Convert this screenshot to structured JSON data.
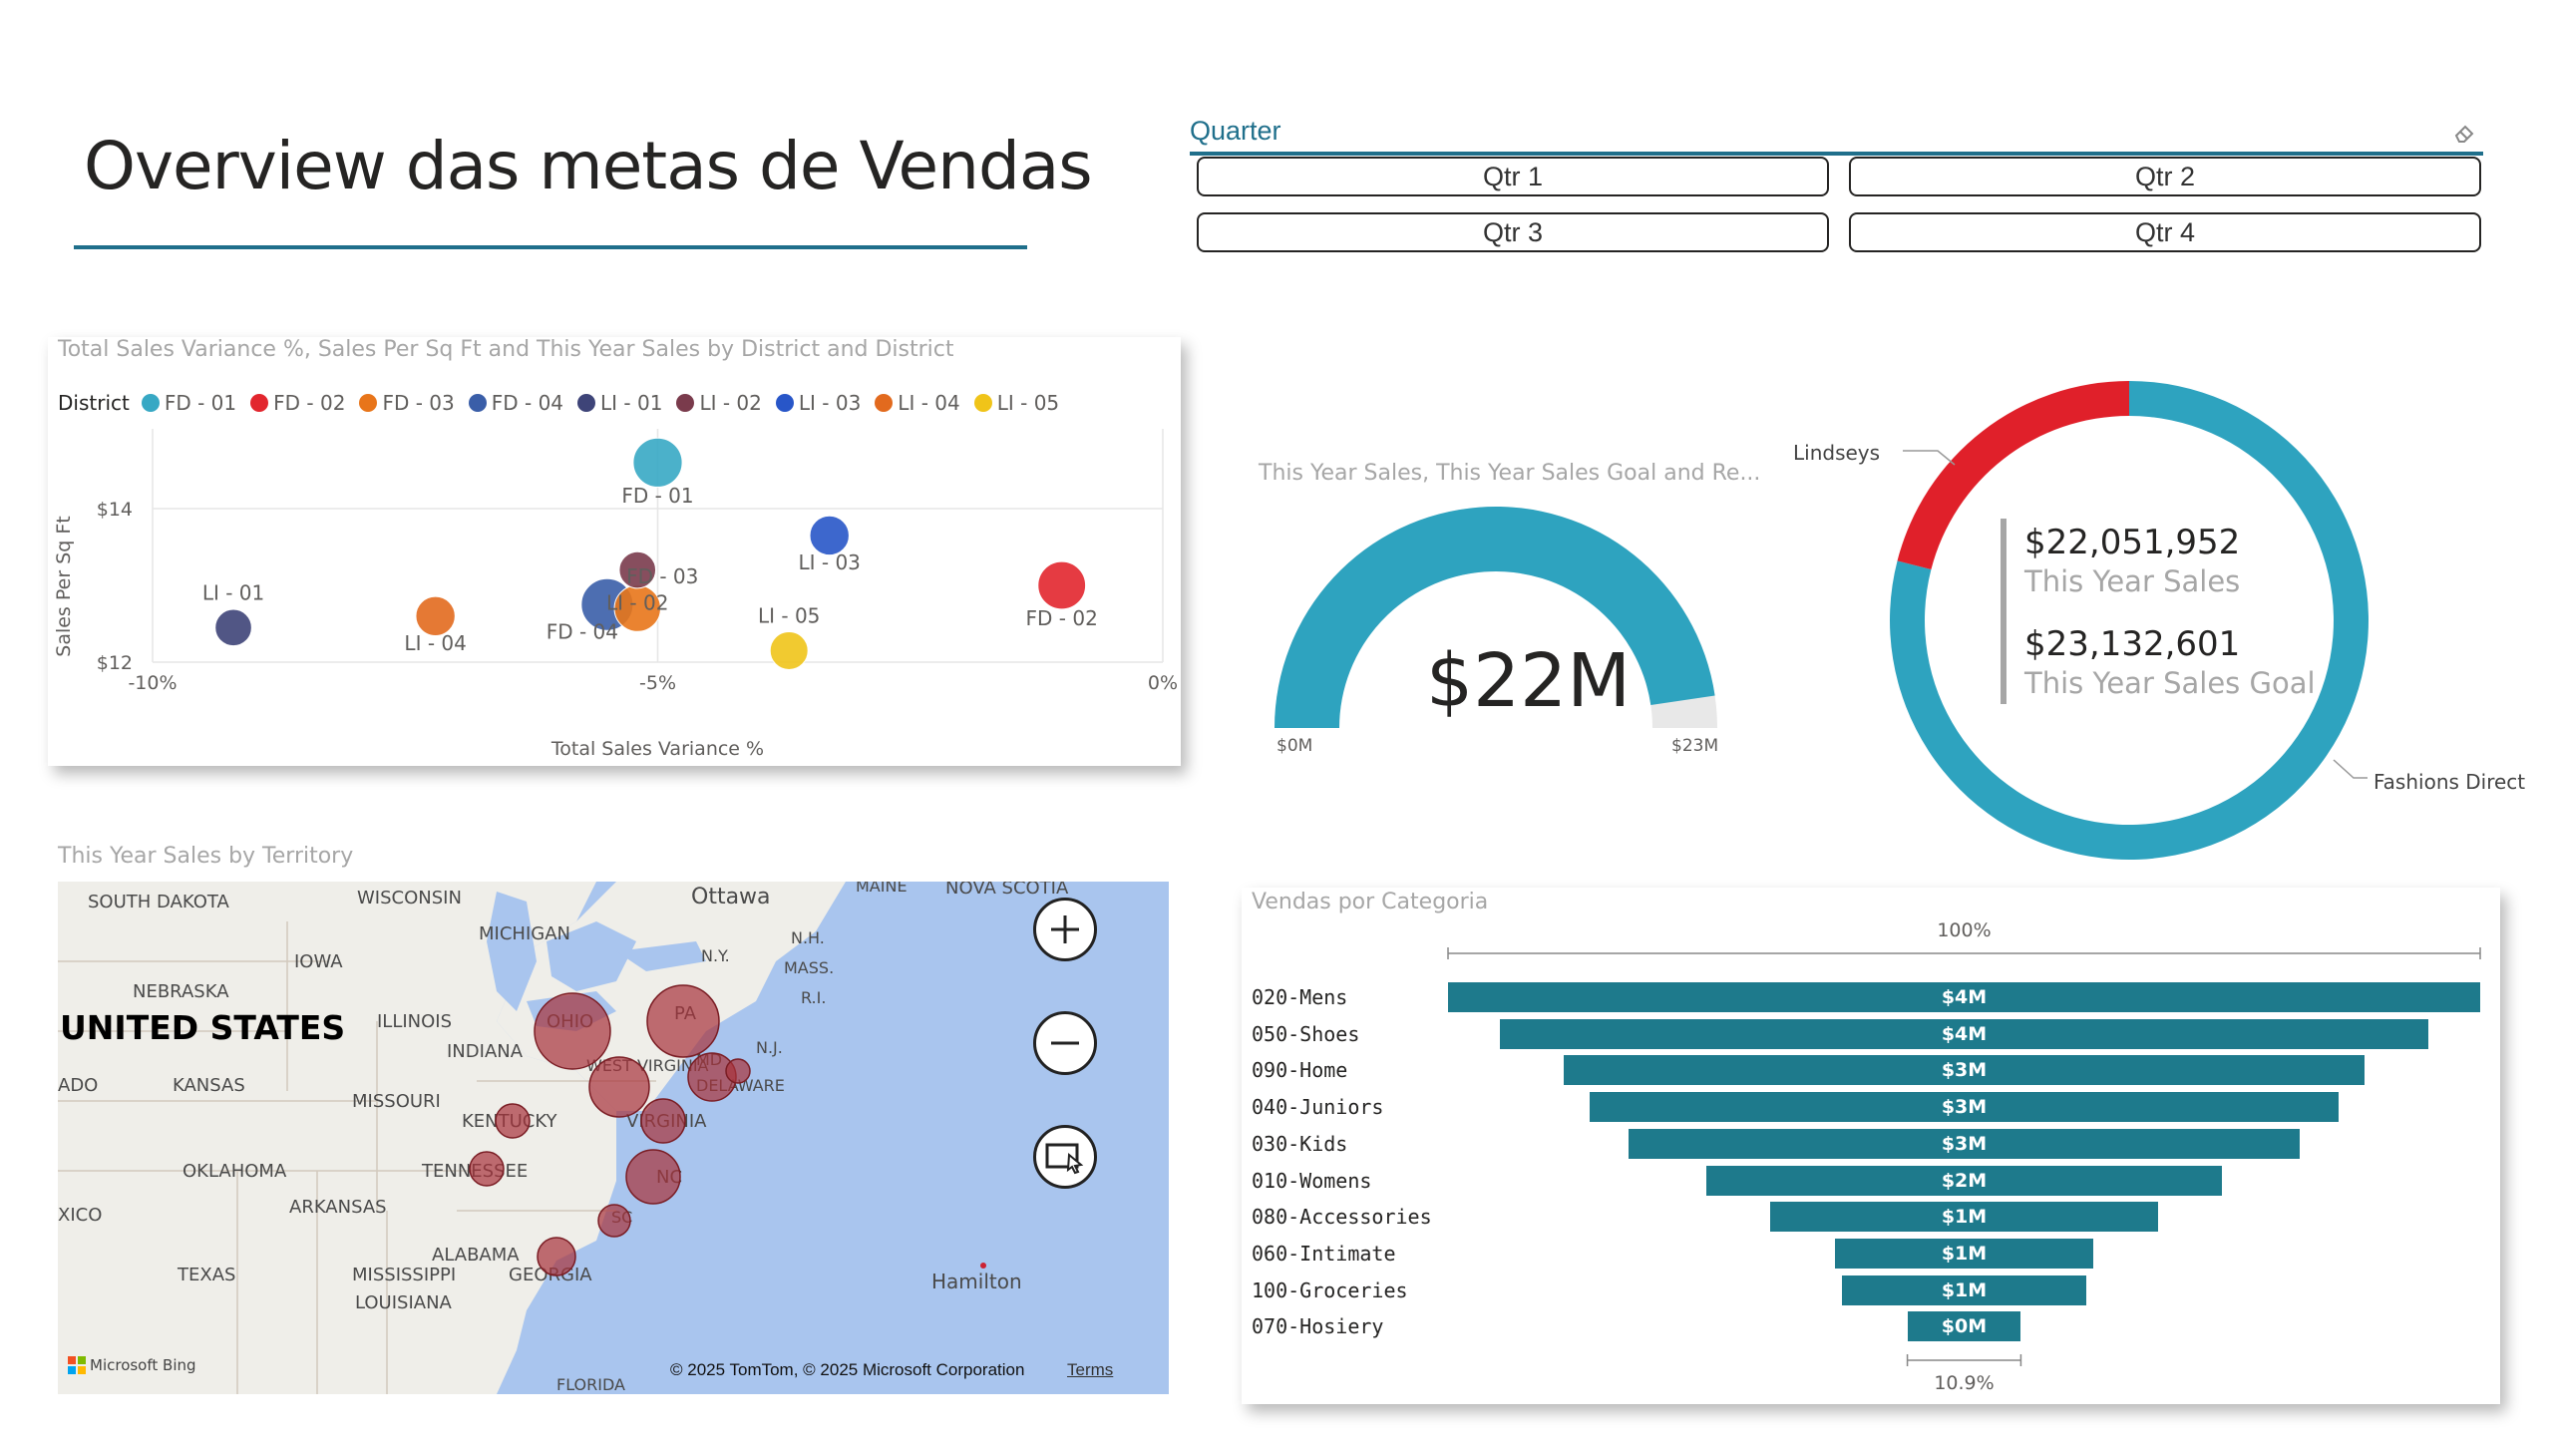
{
  "page": {
    "title": "Overview das metas de Vendas"
  },
  "slicer": {
    "title": "Quarter",
    "options": [
      "Qtr 1",
      "Qtr 2",
      "Qtr 3",
      "Qtr 4"
    ],
    "clear_icon": "eraser-icon"
  },
  "scatter": {
    "title": "Total Sales Variance %, Sales Per Sq Ft and This Year Sales by District and District",
    "legend_label": "District",
    "chart_data": {
      "type": "scatter",
      "xlabel": "Total Sales Variance %",
      "ylabel": "Sales Per Sq Ft",
      "xlim": [
        -10,
        0
      ],
      "ylim": [
        12,
        14
      ],
      "x_ticks": [
        "-10%",
        "-5%",
        "0%"
      ],
      "y_ticks": [
        "$12",
        "$14"
      ],
      "series": [
        {
          "name": "FD - 01",
          "color": "#37a8c4",
          "x": -5.0,
          "y": 14.6,
          "size": 0.9
        },
        {
          "name": "FD - 02",
          "color": "#e2262e",
          "x": -1.0,
          "y": 13.0,
          "size": 0.85
        },
        {
          "name": "FD - 03",
          "color": "#e8751a",
          "x": -5.2,
          "y": 12.7,
          "size": 0.8
        },
        {
          "name": "FD - 04",
          "color": "#3a5ea8",
          "x": -5.5,
          "y": 12.75,
          "size": 1.0
        },
        {
          "name": "LI - 01",
          "color": "#3e4478",
          "x": -9.2,
          "y": 12.45,
          "size": 0.45
        },
        {
          "name": "LI - 02",
          "color": "#7a3b4c",
          "x": -5.2,
          "y": 13.2,
          "size": 0.45
        },
        {
          "name": "LI - 03",
          "color": "#2856c8",
          "x": -3.3,
          "y": 13.65,
          "size": 0.55
        },
        {
          "name": "LI - 04",
          "color": "#e26a1e",
          "x": -7.2,
          "y": 12.6,
          "size": 0.55
        },
        {
          "name": "LI - 05",
          "color": "#f0c419",
          "x": -3.7,
          "y": 12.15,
          "size": 0.5
        }
      ],
      "point_labels": [
        {
          "text": "FD - 01",
          "ref": 0
        },
        {
          "text": "FD - 02",
          "ref": 1
        },
        {
          "text": "FD - 03",
          "ref": 2
        },
        {
          "text": "FD - 04",
          "ref": 3
        },
        {
          "text": "LI - 01",
          "ref": 4
        },
        {
          "text": "LI - 02",
          "ref": 5
        },
        {
          "text": "LI - 03",
          "ref": 6
        },
        {
          "text": "LI - 04",
          "ref": 7
        },
        {
          "text": "LI - 05",
          "ref": 8
        }
      ]
    }
  },
  "gauge": {
    "title": "This Year Sales, This Year Sales Goal and Re...",
    "value_label": "$22M",
    "min_label": "$0M",
    "max_label": "$23M",
    "value": 22051952,
    "max": 23132601,
    "fill_color": "#2ea3bf",
    "track_color": "#e8e8e8"
  },
  "donut": {
    "kpi1_value": "$22,051,952",
    "kpi1_label": "This Year Sales",
    "kpi2_value": "$23,132,601",
    "kpi2_label": "This Year Sales Goal",
    "label_lindseys": "Lindseys",
    "label_fashions": "Fashions Direct",
    "chart_data": {
      "type": "pie",
      "slices": [
        {
          "name": "Fashions Direct",
          "value": 79,
          "color": "#2ea3bf"
        },
        {
          "name": "Lindseys",
          "value": 21,
          "color": "#e0202a"
        }
      ]
    }
  },
  "map": {
    "title": "This Year Sales by Territory",
    "labels": [
      "SOUTH DAKOTA",
      "WISCONSIN",
      "Ottawa",
      "MAINE",
      "NOVA SCOTIA",
      "MICHIGAN",
      "IOWA",
      "N.Y.",
      "N.H.",
      "MASS.",
      "NEBRASKA",
      "R.I.",
      "UNITED STATES",
      "ILLINOIS",
      "INDIANA",
      "OHIO",
      "PA",
      "N.J.",
      "ADO",
      "KANSAS",
      "MISSOURI",
      "WEST VIRGINIA",
      "MD",
      "DELAWARE",
      "KENTUCKY",
      "VIRGINIA",
      "OKLAHOMA",
      "TENNESSEE",
      "NC",
      "XICO",
      "ARKANSAS",
      "SC",
      "ALABAMA",
      "TEXAS",
      "MISSISSIPPI",
      "GEORGIA",
      "LOUISIANA",
      "Hamilton",
      "FLORIDA"
    ],
    "attribution": "© 2025 TomTom, © 2025 Microsoft Corporation",
    "terms": "Terms",
    "bing": "Microsoft Bing",
    "zoom_in_icon": "plus-icon",
    "zoom_out_icon": "minus-icon",
    "select_icon": "selection-icon"
  },
  "funnel": {
    "title": "Vendas por Categoria",
    "top_pct": "100%",
    "bottom_pct": "10.9%",
    "chart_data": {
      "type": "bar",
      "categories": [
        "020-Mens",
        "050-Shoes",
        "090-Home",
        "040-Juniors",
        "030-Kids",
        "010-Womens",
        "080-Accessories",
        "060-Intimate",
        "100-Groceries",
        "070-Hosiery"
      ],
      "values": [
        4.0,
        3.6,
        3.1,
        2.9,
        2.6,
        2.0,
        1.5,
        1.0,
        0.95,
        0.44
      ],
      "value_labels": [
        "$4M",
        "$4M",
        "$3M",
        "$3M",
        "$3M",
        "$2M",
        "$1M",
        "$1M",
        "$1M",
        "$0M"
      ]
    }
  }
}
